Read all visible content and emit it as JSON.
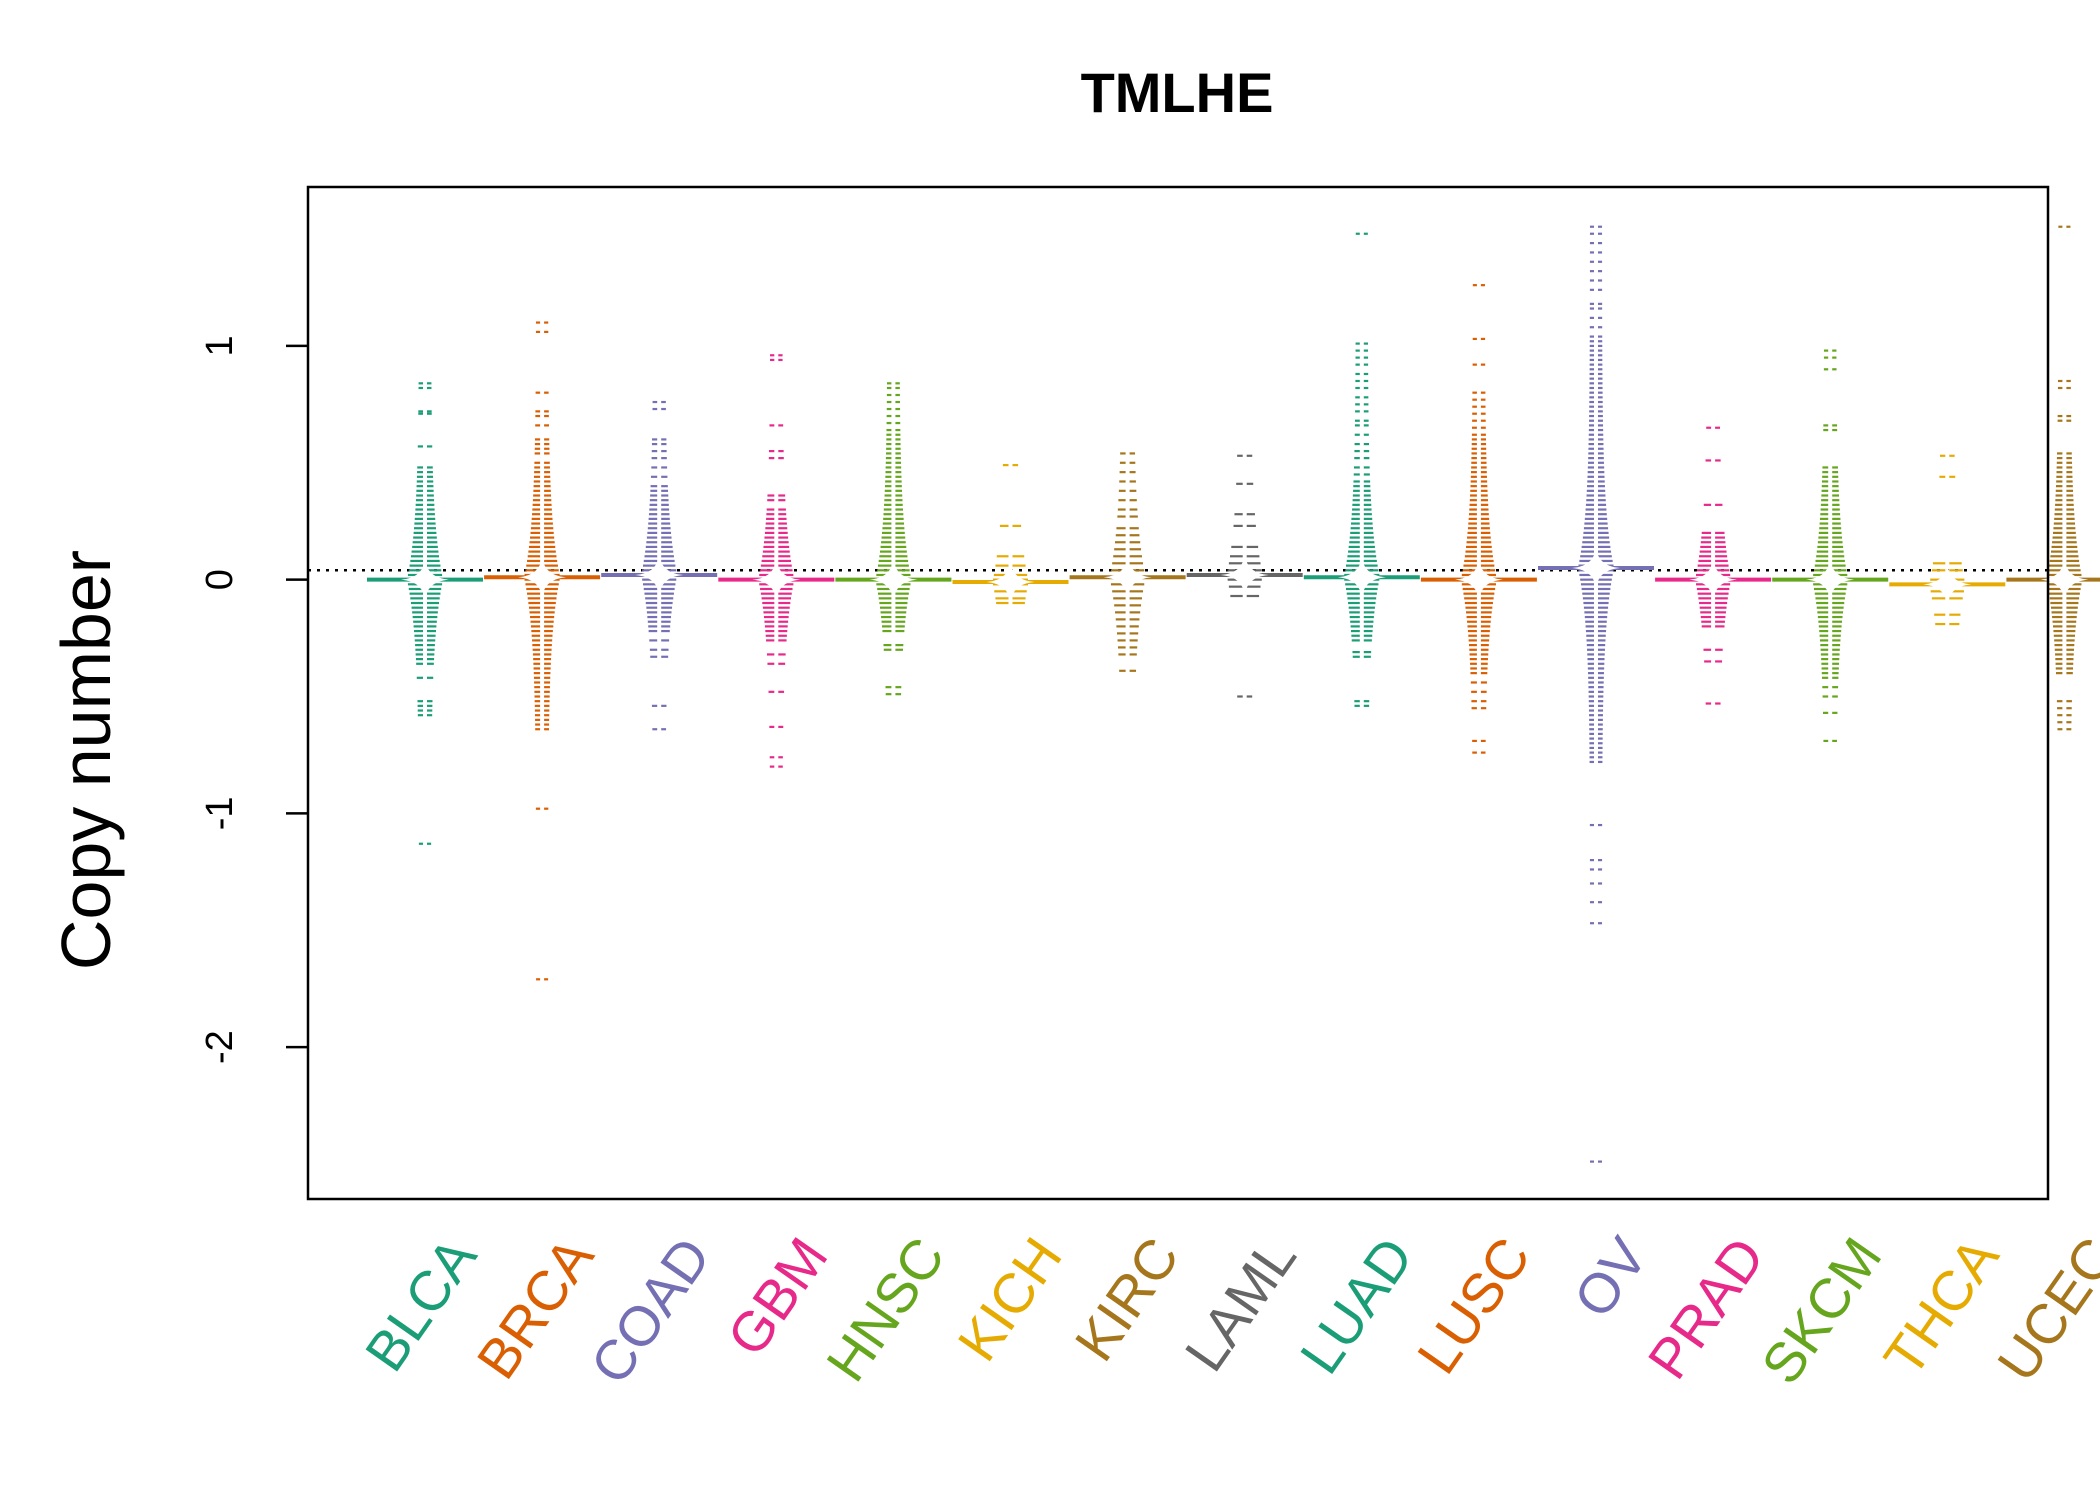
{
  "chart_data": {
    "type": "scatter",
    "title": "TMLHE",
    "ylabel": "Copy number",
    "xlabel": "",
    "ylim": [
      -2.65,
      1.68
    ],
    "yticks": [
      -2,
      -1,
      0,
      1
    ],
    "reference_line": 0.04,
    "grid": false,
    "legend": "none",
    "categories": [
      {
        "name": "BLCA",
        "color": "#1B9E77",
        "median": 0.0,
        "values": [
          0.84,
          0.82,
          0.72,
          0.71,
          0.57,
          0.48,
          0.46,
          0.44,
          0.42,
          0.4,
          0.38,
          0.36,
          0.34,
          0.32,
          0.3,
          0.28,
          0.26,
          0.24,
          0.22,
          0.2,
          0.18,
          0.16,
          0.14,
          0.12,
          0.1,
          0.08,
          0.06,
          0.04,
          0.02,
          0.0,
          -0.02,
          -0.04,
          -0.06,
          -0.08,
          -0.1,
          -0.12,
          -0.14,
          -0.16,
          -0.18,
          -0.2,
          -0.22,
          -0.24,
          -0.26,
          -0.28,
          -0.3,
          -0.32,
          -0.34,
          -0.36,
          -0.42,
          -0.52,
          -0.54,
          -0.56,
          -0.58,
          -1.13
        ]
      },
      {
        "name": "BRCA",
        "color": "#D95F02",
        "median": 0.01,
        "values": [
          1.1,
          1.06,
          0.8,
          0.72,
          0.7,
          0.66,
          0.6,
          0.58,
          0.56,
          0.54,
          0.5,
          0.48,
          0.46,
          0.44,
          0.42,
          0.4,
          0.38,
          0.36,
          0.34,
          0.32,
          0.3,
          0.28,
          0.26,
          0.24,
          0.22,
          0.2,
          0.18,
          0.16,
          0.14,
          0.12,
          0.1,
          0.08,
          0.06,
          0.04,
          0.02,
          0.0,
          -0.02,
          -0.04,
          -0.06,
          -0.08,
          -0.1,
          -0.12,
          -0.14,
          -0.16,
          -0.18,
          -0.2,
          -0.22,
          -0.24,
          -0.26,
          -0.28,
          -0.3,
          -0.32,
          -0.34,
          -0.36,
          -0.38,
          -0.4,
          -0.42,
          -0.44,
          -0.46,
          -0.48,
          -0.5,
          -0.52,
          -0.54,
          -0.56,
          -0.58,
          -0.6,
          -0.62,
          -0.64,
          -0.98,
          -1.71
        ]
      },
      {
        "name": "COAD",
        "color": "#7570B3",
        "median": 0.02,
        "values": [
          0.76,
          0.73,
          0.6,
          0.58,
          0.55,
          0.52,
          0.48,
          0.44,
          0.4,
          0.38,
          0.36,
          0.34,
          0.32,
          0.3,
          0.28,
          0.26,
          0.24,
          0.22,
          0.2,
          0.18,
          0.16,
          0.14,
          0.12,
          0.1,
          0.08,
          0.06,
          0.04,
          0.02,
          0.0,
          -0.02,
          -0.04,
          -0.06,
          -0.08,
          -0.1,
          -0.12,
          -0.14,
          -0.16,
          -0.18,
          -0.2,
          -0.22,
          -0.26,
          -0.3,
          -0.33,
          -0.54,
          -0.64
        ]
      },
      {
        "name": "GBM",
        "color": "#E7298A",
        "median": 0.0,
        "values": [
          0.96,
          0.94,
          0.66,
          0.55,
          0.52,
          0.36,
          0.34,
          0.3,
          0.28,
          0.26,
          0.24,
          0.22,
          0.2,
          0.18,
          0.16,
          0.14,
          0.12,
          0.1,
          0.08,
          0.06,
          0.04,
          0.02,
          0.0,
          -0.02,
          -0.04,
          -0.06,
          -0.08,
          -0.1,
          -0.12,
          -0.14,
          -0.16,
          -0.18,
          -0.2,
          -0.22,
          -0.24,
          -0.26,
          -0.32,
          -0.36,
          -0.48,
          -0.63,
          -0.76,
          -0.8
        ]
      },
      {
        "name": "HNSC",
        "color": "#66A61E",
        "median": 0.0,
        "values": [
          0.84,
          0.82,
          0.79,
          0.76,
          0.73,
          0.7,
          0.67,
          0.64,
          0.62,
          0.6,
          0.58,
          0.56,
          0.54,
          0.52,
          0.5,
          0.48,
          0.46,
          0.44,
          0.42,
          0.4,
          0.38,
          0.36,
          0.34,
          0.32,
          0.3,
          0.28,
          0.26,
          0.24,
          0.22,
          0.2,
          0.18,
          0.16,
          0.14,
          0.12,
          0.1,
          0.08,
          0.06,
          0.04,
          0.02,
          0.0,
          -0.02,
          -0.04,
          -0.06,
          -0.08,
          -0.1,
          -0.12,
          -0.14,
          -0.16,
          -0.18,
          -0.2,
          -0.22,
          -0.28,
          -0.3,
          -0.46,
          -0.49
        ]
      },
      {
        "name": "KICH",
        "color": "#E6AB02",
        "median": -0.01,
        "values": [
          0.49,
          0.23,
          0.1,
          0.06,
          0.02,
          0.0,
          -0.02,
          -0.05,
          -0.08,
          -0.1
        ]
      },
      {
        "name": "KIRC",
        "color": "#A6761D",
        "median": 0.01,
        "values": [
          0.54,
          0.5,
          0.46,
          0.42,
          0.38,
          0.34,
          0.3,
          0.27,
          0.22,
          0.19,
          0.16,
          0.13,
          0.1,
          0.07,
          0.04,
          0.01,
          -0.02,
          -0.05,
          -0.08,
          -0.11,
          -0.14,
          -0.17,
          -0.2,
          -0.23,
          -0.26,
          -0.29,
          -0.32,
          -0.39
        ]
      },
      {
        "name": "LAML",
        "color": "#666666",
        "median": 0.02,
        "values": [
          0.53,
          0.41,
          0.28,
          0.23,
          0.14,
          0.1,
          0.07,
          0.04,
          0.02,
          0.0,
          -0.03,
          -0.07,
          -0.5
        ]
      },
      {
        "name": "LUAD",
        "color": "#1B9E77",
        "median": 0.01,
        "values": [
          1.48,
          1.01,
          0.98,
          0.95,
          0.92,
          0.88,
          0.85,
          0.82,
          0.78,
          0.75,
          0.72,
          0.68,
          0.66,
          0.62,
          0.58,
          0.55,
          0.52,
          0.48,
          0.45,
          0.42,
          0.4,
          0.38,
          0.36,
          0.34,
          0.32,
          0.3,
          0.28,
          0.26,
          0.24,
          0.22,
          0.2,
          0.18,
          0.16,
          0.14,
          0.12,
          0.1,
          0.08,
          0.06,
          0.04,
          0.02,
          0.0,
          -0.02,
          -0.04,
          -0.06,
          -0.08,
          -0.1,
          -0.12,
          -0.14,
          -0.16,
          -0.18,
          -0.2,
          -0.22,
          -0.24,
          -0.26,
          -0.31,
          -0.33,
          -0.52,
          -0.54
        ]
      },
      {
        "name": "LUSC",
        "color": "#D95F02",
        "median": 0.0,
        "values": [
          1.26,
          1.03,
          0.92,
          0.8,
          0.77,
          0.74,
          0.71,
          0.68,
          0.65,
          0.62,
          0.6,
          0.58,
          0.56,
          0.54,
          0.52,
          0.5,
          0.48,
          0.46,
          0.44,
          0.42,
          0.4,
          0.38,
          0.36,
          0.34,
          0.32,
          0.3,
          0.28,
          0.26,
          0.24,
          0.22,
          0.2,
          0.18,
          0.16,
          0.14,
          0.12,
          0.1,
          0.08,
          0.06,
          0.04,
          0.02,
          0.0,
          -0.02,
          -0.04,
          -0.06,
          -0.08,
          -0.1,
          -0.12,
          -0.14,
          -0.16,
          -0.18,
          -0.2,
          -0.22,
          -0.24,
          -0.26,
          -0.28,
          -0.3,
          -0.32,
          -0.34,
          -0.36,
          -0.38,
          -0.4,
          -0.44,
          -0.48,
          -0.52,
          -0.55,
          -0.69,
          -0.74
        ]
      },
      {
        "name": "OV",
        "color": "#7570B3",
        "median": 0.05,
        "values": [
          1.51,
          1.48,
          1.44,
          1.4,
          1.36,
          1.32,
          1.28,
          1.24,
          1.18,
          1.16,
          1.12,
          1.08,
          1.04,
          1.02,
          1.0,
          0.98,
          0.96,
          0.94,
          0.92,
          0.9,
          0.88,
          0.86,
          0.84,
          0.82,
          0.8,
          0.78,
          0.76,
          0.74,
          0.72,
          0.7,
          0.68,
          0.66,
          0.64,
          0.62,
          0.6,
          0.58,
          0.56,
          0.54,
          0.52,
          0.5,
          0.48,
          0.46,
          0.44,
          0.42,
          0.4,
          0.38,
          0.36,
          0.34,
          0.32,
          0.3,
          0.28,
          0.26,
          0.24,
          0.22,
          0.2,
          0.18,
          0.16,
          0.14,
          0.12,
          0.1,
          0.08,
          0.06,
          0.04,
          0.02,
          0.0,
          -0.02,
          -0.04,
          -0.06,
          -0.08,
          -0.1,
          -0.12,
          -0.14,
          -0.16,
          -0.18,
          -0.2,
          -0.22,
          -0.24,
          -0.26,
          -0.28,
          -0.3,
          -0.32,
          -0.34,
          -0.36,
          -0.38,
          -0.4,
          -0.42,
          -0.44,
          -0.46,
          -0.48,
          -0.5,
          -0.52,
          -0.54,
          -0.56,
          -0.58,
          -0.6,
          -0.62,
          -0.64,
          -0.66,
          -0.68,
          -0.7,
          -0.72,
          -0.74,
          -0.76,
          -0.78,
          -1.05,
          -1.2,
          -1.24,
          -1.3,
          -1.38,
          -1.47,
          -2.49
        ]
      },
      {
        "name": "PRAD",
        "color": "#E7298A",
        "median": 0.0,
        "values": [
          0.65,
          0.51,
          0.32,
          0.2,
          0.18,
          0.16,
          0.14,
          0.12,
          0.1,
          0.08,
          0.06,
          0.04,
          0.02,
          0.0,
          -0.02,
          -0.04,
          -0.06,
          -0.08,
          -0.1,
          -0.12,
          -0.14,
          -0.16,
          -0.18,
          -0.2,
          -0.3,
          -0.35,
          -0.53
        ]
      },
      {
        "name": "SKCM",
        "color": "#66A61E",
        "median": 0.0,
        "values": [
          0.98,
          0.95,
          0.9,
          0.66,
          0.64,
          0.48,
          0.46,
          0.44,
          0.42,
          0.4,
          0.38,
          0.36,
          0.34,
          0.32,
          0.3,
          0.28,
          0.26,
          0.24,
          0.22,
          0.2,
          0.18,
          0.16,
          0.14,
          0.12,
          0.1,
          0.08,
          0.06,
          0.04,
          0.02,
          0.0,
          -0.02,
          -0.04,
          -0.06,
          -0.08,
          -0.1,
          -0.12,
          -0.14,
          -0.16,
          -0.18,
          -0.2,
          -0.22,
          -0.24,
          -0.26,
          -0.28,
          -0.3,
          -0.32,
          -0.34,
          -0.36,
          -0.38,
          -0.4,
          -0.42,
          -0.46,
          -0.5,
          -0.57,
          -0.69
        ]
      },
      {
        "name": "THCA",
        "color": "#E6AB02",
        "median": -0.02,
        "values": [
          0.53,
          0.44,
          0.07,
          0.04,
          0.0,
          -0.02,
          -0.05,
          -0.08,
          -0.15,
          -0.19
        ]
      },
      {
        "name": "UCEC",
        "color": "#A6761D",
        "median": 0.0,
        "values": [
          1.51,
          0.85,
          0.82,
          0.7,
          0.68,
          0.54,
          0.52,
          0.5,
          0.48,
          0.46,
          0.44,
          0.42,
          0.4,
          0.38,
          0.36,
          0.34,
          0.32,
          0.3,
          0.28,
          0.26,
          0.24,
          0.22,
          0.2,
          0.18,
          0.16,
          0.14,
          0.12,
          0.1,
          0.08,
          0.06,
          0.04,
          0.02,
          0.0,
          -0.02,
          -0.04,
          -0.06,
          -0.08,
          -0.1,
          -0.12,
          -0.14,
          -0.16,
          -0.18,
          -0.2,
          -0.22,
          -0.24,
          -0.26,
          -0.28,
          -0.3,
          -0.32,
          -0.34,
          -0.36,
          -0.38,
          -0.4,
          -0.52,
          -0.55,
          -0.58,
          -0.61,
          -0.64
        ]
      }
    ]
  }
}
